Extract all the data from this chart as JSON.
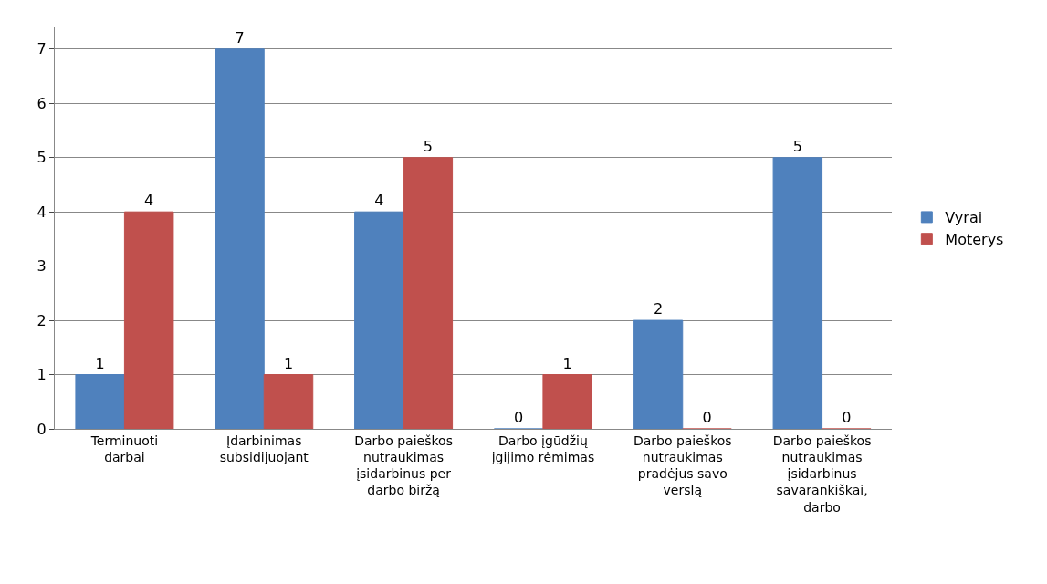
{
  "chart_data": {
    "type": "bar",
    "categories": [
      "Terminuoti darbai",
      "Įdarbinimas subsidijuojant",
      "Darbo paieškos nutraukimas įsidarbinus per darbo biržą",
      "Darbo įgūdžių įgijimo rėmimas",
      "Darbo paieškos nutraukimas pradėjus savo verslą",
      "Darbo paieškos nutraukimas įsidarbinus savarankiškai, darbo"
    ],
    "series": [
      {
        "name": "Vyrai",
        "color": "#4f81bd",
        "values": [
          1,
          7,
          4,
          0,
          2,
          5
        ]
      },
      {
        "name": "Moterys",
        "color": "#c0504d",
        "values": [
          4,
          1,
          5,
          1,
          0,
          0
        ]
      }
    ],
    "ylim": [
      0,
      7.4
    ],
    "yticks": [
      0,
      1,
      2,
      3,
      4,
      5,
      6,
      7
    ],
    "grid": "y",
    "legend": "right",
    "data_labels": true
  }
}
